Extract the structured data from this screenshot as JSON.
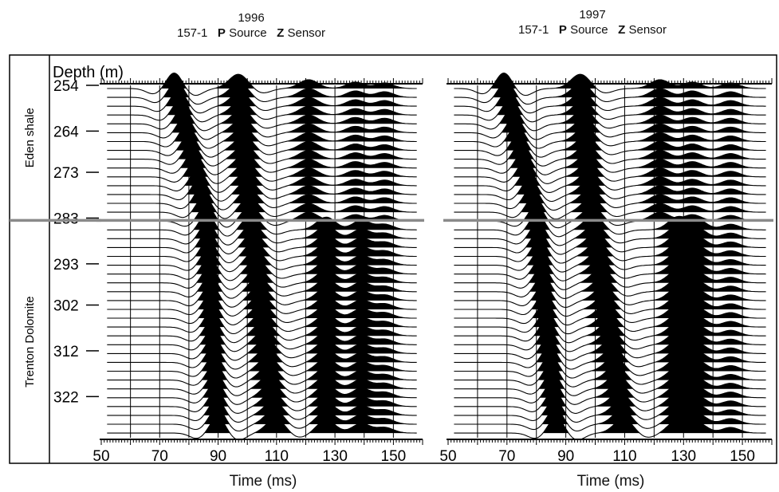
{
  "panels": [
    {
      "year": "1996",
      "well": "157-1",
      "source_letter": "P",
      "source_word": "Source",
      "sensor_letter": "Z",
      "sensor_word": "Sensor",
      "xlabel": "Time (ms)"
    },
    {
      "year": "1997",
      "well": "157-1",
      "source_letter": "P",
      "source_word": "Source",
      "sensor_letter": "Z",
      "sensor_word": "Sensor",
      "xlabel": "Time (ms)"
    }
  ],
  "formations": [
    "Eden shale",
    "Trenton Dolomite"
  ],
  "depth_label": "Depth (m)",
  "chart_data": {
    "type": "line",
    "title": "",
    "xlabel": "Time (ms)",
    "ylabel": "Depth (m)",
    "xlim": [
      50,
      160
    ],
    "ylim": [
      254,
      331
    ],
    "x_ticks": [
      50,
      70,
      90,
      110,
      130,
      150
    ],
    "y_ticks": [
      254,
      264,
      273,
      283,
      293,
      302,
      312,
      322
    ],
    "y_tick_labels": [
      "254",
      "264",
      "273",
      "283",
      "293",
      "302",
      "312",
      "322"
    ],
    "formation_boundary_depth": 283.5,
    "trace_depth_step": 1.93,
    "trace_count": 40,
    "colors": {
      "trace": "#000000",
      "boundary": "#8a8a8a",
      "grid": "#000000"
    },
    "series": [
      {
        "name": "1996",
        "first_arrival_ms": {
          "254": 75,
          "283": 86,
          "331": 90
        },
        "second_arrival_ms": {
          "254": 97,
          "283": 101,
          "331": 110
        },
        "late_arrivals_ms": [
          121,
          137,
          147
        ]
      },
      {
        "name": "1997",
        "first_arrival_ms": {
          "254": 69,
          "283": 80,
          "331": 87
        },
        "second_arrival_ms": {
          "254": 95,
          "283": 99,
          "331": 110
        },
        "late_arrivals_ms": [
          122,
          133,
          146
        ]
      }
    ]
  }
}
